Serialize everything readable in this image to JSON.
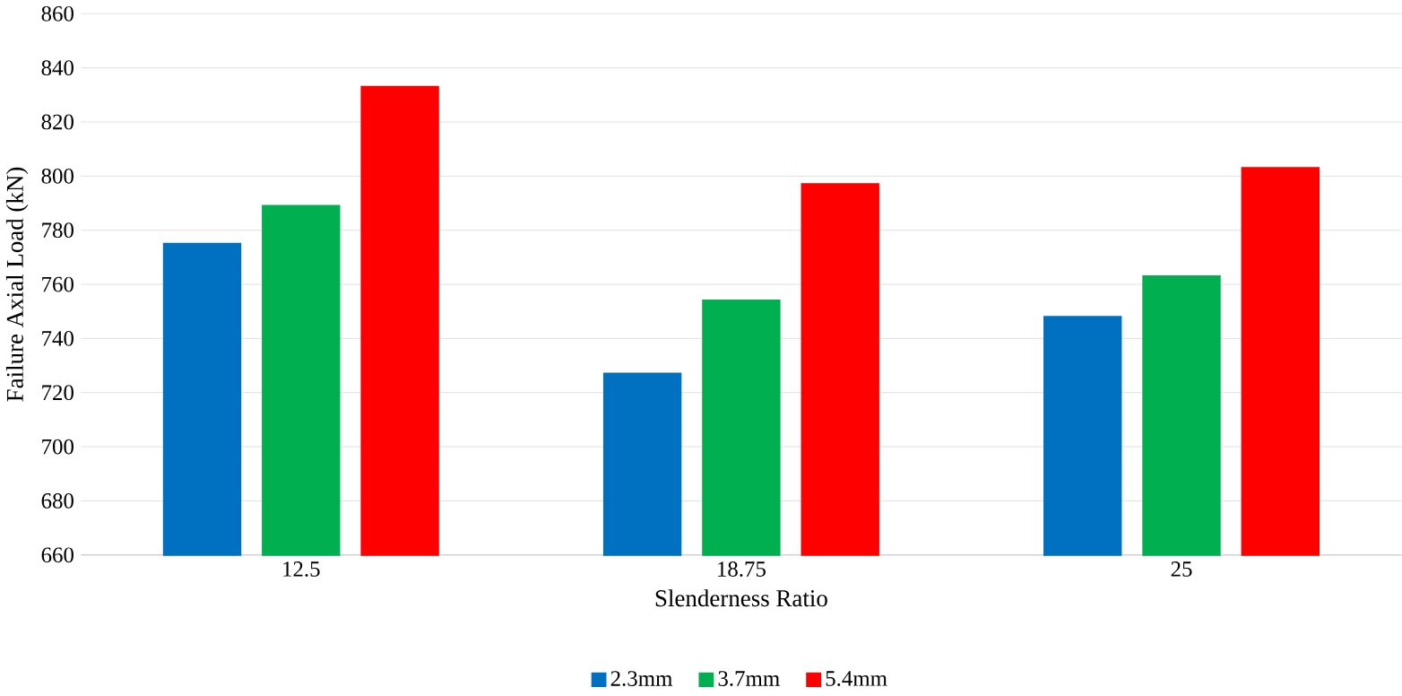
{
  "chart_data": {
    "type": "bar",
    "xlabel": "Slenderness Ratio",
    "ylabel": "Failure Axial Load (kN)",
    "categories": [
      "12.5",
      "18.75",
      "25"
    ],
    "series": [
      {
        "name": "2.3mm",
        "color": "#0070c0",
        "values": [
          775,
          727,
          748
        ]
      },
      {
        "name": "3.7mm",
        "color": "#00b050",
        "values": [
          789,
          754,
          763
        ]
      },
      {
        "name": "5.4mm",
        "color": "#ff0000",
        "values": [
          833,
          797,
          803
        ]
      }
    ],
    "ylim": [
      660,
      860
    ],
    "yticks": [
      660,
      680,
      700,
      720,
      740,
      760,
      780,
      800,
      820,
      840,
      860
    ],
    "grid": "y",
    "legend": "bottom"
  }
}
